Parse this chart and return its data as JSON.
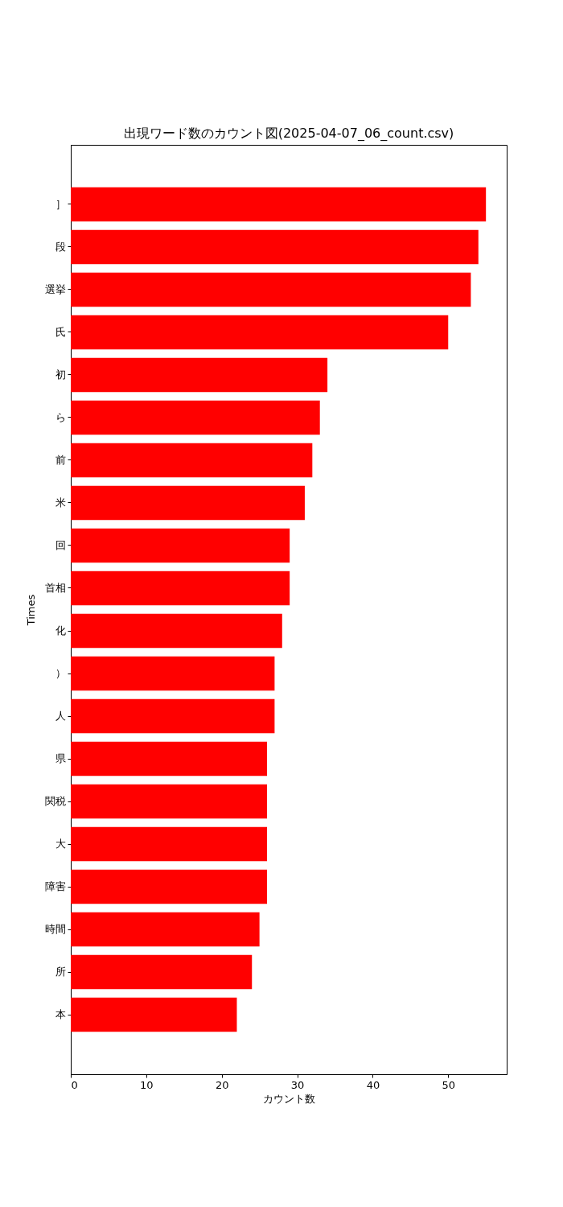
{
  "chart_data": {
    "type": "bar",
    "orientation": "horizontal",
    "title": "出現ワード数のカウント図(2025-04-07_06_count.csv)",
    "xlabel": "カウント数",
    "ylabel": "Times",
    "categories": [
      "］",
      "段",
      "選挙",
      "氏",
      "初",
      "ら",
      "前",
      "米",
      "回",
      "首相",
      "化",
      "）",
      "人",
      "県",
      "関税",
      "大",
      "障害",
      "時間",
      "所",
      "本"
    ],
    "values": [
      55,
      54,
      53,
      50,
      34,
      33,
      32,
      31,
      29,
      29,
      28,
      27,
      27,
      26,
      26,
      26,
      26,
      25,
      24,
      22
    ],
    "color": "#ff0000",
    "xlim": [
      0,
      57.75
    ],
    "xticks": [
      0,
      10,
      20,
      30,
      40,
      50
    ],
    "grid": false
  }
}
